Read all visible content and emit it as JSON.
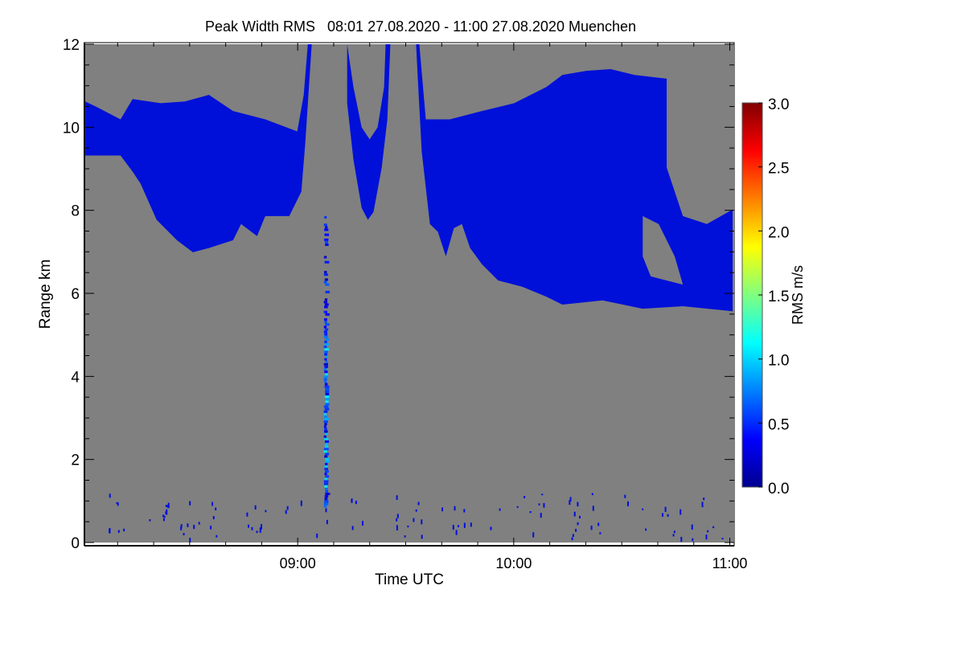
{
  "chart_data": {
    "type": "heatmap",
    "title": "Peak Width RMS   08:01 27.08.2020 - 11:00 27.08.2020 Muenchen",
    "xlabel": "Time UTC",
    "ylabel": "Range km",
    "xlim_hours": [
      8.0167,
      11.0167
    ],
    "ylim": [
      0,
      12
    ],
    "x_ticks": [
      {
        "value": 9,
        "label": "09:00"
      },
      {
        "value": 10,
        "label": "10:00"
      },
      {
        "value": 11,
        "label": "11:00"
      }
    ],
    "y_ticks": [
      {
        "value": 0,
        "label": "0"
      },
      {
        "value": 2,
        "label": "2"
      },
      {
        "value": 4,
        "label": "4"
      },
      {
        "value": 6,
        "label": "6"
      },
      {
        "value": 8,
        "label": "8"
      },
      {
        "value": 10,
        "label": "10"
      },
      {
        "value": 12,
        "label": "12"
      }
    ],
    "background_color": "#808080",
    "colorbar": {
      "label": "RMS m/s",
      "range": [
        0,
        3
      ],
      "colormap": "jet",
      "ticks": [
        {
          "value": 0,
          "label": "0.0"
        },
        {
          "value": 0.5,
          "label": "0.5"
        },
        {
          "value": 1,
          "label": "1.0"
        },
        {
          "value": 1.5,
          "label": "1.5"
        },
        {
          "value": 2,
          "label": "2.0"
        },
        {
          "value": 2.5,
          "label": "2.5"
        },
        {
          "value": 3,
          "label": "3.0"
        }
      ]
    },
    "regions": [
      {
        "name": "cloud-left",
        "value": 0.2,
        "points": [
          [
            8.017,
            10.62
          ],
          [
            8.069,
            10.49
          ],
          [
            8.18,
            10.19
          ],
          [
            8.236,
            10.68
          ],
          [
            8.366,
            10.58
          ],
          [
            8.478,
            10.62
          ],
          [
            8.589,
            10.78
          ],
          [
            8.701,
            10.39
          ],
          [
            8.85,
            10.19
          ],
          [
            8.998,
            9.9
          ],
          [
            9.028,
            10.78
          ],
          [
            9.047,
            12
          ],
          [
            9.065,
            12
          ],
          [
            9.035,
            9.61
          ],
          [
            9.017,
            8.45
          ],
          [
            8.961,
            7.86
          ],
          [
            8.85,
            7.86
          ],
          [
            8.812,
            7.38
          ],
          [
            8.738,
            7.67
          ],
          [
            8.701,
            7.28
          ],
          [
            8.589,
            7.09
          ],
          [
            8.515,
            6.99
          ],
          [
            8.441,
            7.28
          ],
          [
            8.347,
            7.77
          ],
          [
            8.273,
            8.64
          ],
          [
            8.236,
            8.93
          ],
          [
            8.18,
            9.32
          ],
          [
            8.069,
            9.32
          ],
          [
            8.017,
            9.32
          ]
        ]
      },
      {
        "name": "cloud-middle",
        "value": 0.2,
        "points": [
          [
            9.229,
            12
          ],
          [
            9.258,
            10.97
          ],
          [
            9.296,
            10.0
          ],
          [
            9.333,
            9.71
          ],
          [
            9.37,
            10.0
          ],
          [
            9.4,
            10.97
          ],
          [
            9.407,
            12
          ],
          [
            9.429,
            12
          ],
          [
            9.415,
            10.19
          ],
          [
            9.389,
            9.03
          ],
          [
            9.351,
            7.96
          ],
          [
            9.325,
            7.77
          ],
          [
            9.296,
            8.06
          ],
          [
            9.258,
            9.22
          ],
          [
            9.229,
            10.58
          ]
        ]
      },
      {
        "name": "cloud-right",
        "value": 0.2,
        "points": [
          [
            9.548,
            12
          ],
          [
            9.563,
            12
          ],
          [
            9.593,
            10.19
          ],
          [
            9.704,
            10.19
          ],
          [
            9.853,
            10.39
          ],
          [
            10.002,
            10.58
          ],
          [
            10.151,
            10.97
          ],
          [
            10.225,
            11.26
          ],
          [
            10.336,
            11.36
          ],
          [
            10.448,
            11.4
          ],
          [
            10.559,
            11.26
          ],
          [
            10.708,
            11.17
          ],
          [
            10.708,
            9.03
          ],
          [
            10.783,
            7.86
          ],
          [
            10.894,
            7.67
          ],
          [
            11.013,
            8.02
          ],
          [
            11.013,
            5.57
          ],
          [
            10.783,
            5.69
          ],
          [
            10.597,
            5.63
          ],
          [
            10.411,
            5.83
          ],
          [
            10.225,
            5.73
          ],
          [
            10.151,
            5.92
          ],
          [
            10.039,
            6.16
          ],
          [
            9.928,
            6.31
          ],
          [
            9.853,
            6.7
          ],
          [
            9.798,
            7.09
          ],
          [
            9.76,
            7.67
          ],
          [
            9.723,
            7.57
          ],
          [
            9.686,
            6.89
          ],
          [
            9.649,
            7.48
          ],
          [
            9.612,
            7.67
          ],
          [
            9.574,
            9.42
          ],
          [
            9.556,
            11.17
          ]
        ]
      }
    ],
    "gaps": [
      {
        "name": "cloud-right-hole",
        "points": [
          [
            10.597,
            7.86
          ],
          [
            10.671,
            7.67
          ],
          [
            10.745,
            6.89
          ],
          [
            10.783,
            6.21
          ],
          [
            10.708,
            6.31
          ],
          [
            10.634,
            6.41
          ],
          [
            10.597,
            6.89
          ]
        ]
      }
    ],
    "streak": {
      "time": 9.128,
      "range_km": [
        0.9,
        7.9
      ],
      "value_range": [
        0.2,
        1.1
      ]
    }
  }
}
